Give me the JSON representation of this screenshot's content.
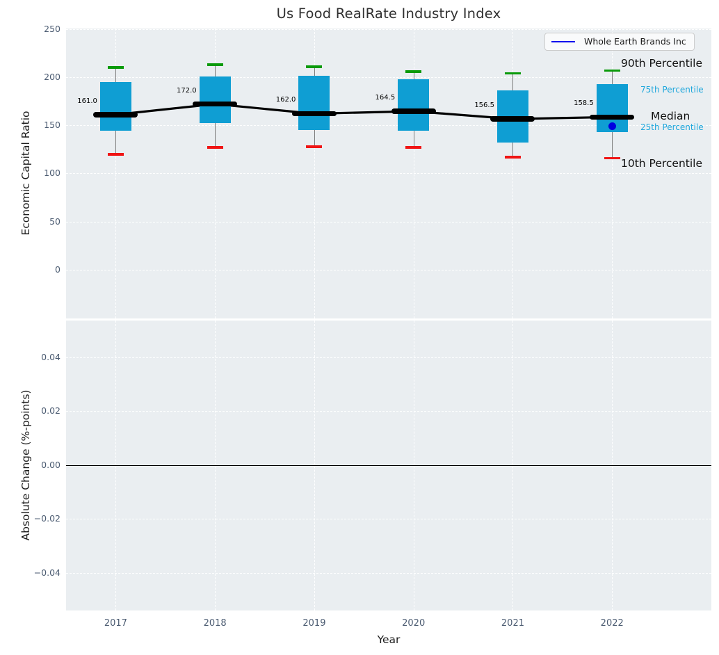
{
  "figure": {
    "title": "Us Food RealRate Industry Index",
    "xlabel": "Year"
  },
  "legend": {
    "label": "Whole Earth Brands Inc",
    "line_color": "#0000ee"
  },
  "colors": {
    "plot_background": "#eaeef1",
    "box_fill": "#0f9ed3",
    "cap_high": "#0a9a0a",
    "cap_low": "#f01414",
    "median_line": "#000000",
    "company_dot": "#0000e0",
    "cyan_annotation": "#1fa7dc",
    "tick_text": "#4b5b71"
  },
  "percentile_annotations": {
    "p90": "90th Percentile",
    "p75": "75th Percentile",
    "median": "Median",
    "p25": "25th Percentile",
    "p10": "10th Percentile"
  },
  "chart_data": [
    {
      "type": "boxplot",
      "title": "Us Food RealRate Industry Index",
      "xlabel": "Year",
      "ylabel": "Economic Capital Ratio",
      "categories": [
        "2017",
        "2018",
        "2019",
        "2020",
        "2021",
        "2022"
      ],
      "ylim": [
        -50.6,
        250.4
      ],
      "yticks": [
        {
          "v": 250,
          "t": "250"
        },
        {
          "v": 200,
          "t": "200"
        },
        {
          "v": 150,
          "t": "150"
        },
        {
          "v": 100,
          "t": "100"
        },
        {
          "v": 50,
          "t": "50"
        },
        {
          "v": 0,
          "t": "0"
        }
      ],
      "grid": true,
      "legend_position": "upper right",
      "series": [
        {
          "name": "90th Percentile",
          "role": "p90",
          "values": [
            210,
            213,
            211,
            206,
            204,
            207
          ]
        },
        {
          "name": "75th Percentile",
          "role": "p75",
          "values": [
            195,
            200.5,
            201,
            198,
            186.5,
            193
          ]
        },
        {
          "name": "Median",
          "role": "median",
          "values": [
            161.0,
            172.0,
            162.0,
            164.5,
            156.5,
            158.5
          ]
        },
        {
          "name": "25th Percentile",
          "role": "p25",
          "values": [
            144,
            152.5,
            145,
            144,
            132,
            143
          ]
        },
        {
          "name": "10th Percentile",
          "role": "p10",
          "values": [
            120,
            127,
            128,
            127,
            117,
            116
          ]
        }
      ],
      "median_labels": [
        "161.0",
        "172.0",
        "162.0",
        "164.5",
        "156.5",
        "158.5"
      ],
      "company_point": {
        "name": "Whole Earth Brands Inc",
        "category": "2022",
        "value": 149
      }
    },
    {
      "type": "line",
      "ylabel": "Absolute Change (%-points)",
      "ylim": [
        -0.054,
        0.0537
      ],
      "yticks": [
        {
          "v": 0.04,
          "t": "0.04"
        },
        {
          "v": 0.02,
          "t": "0.02"
        },
        {
          "v": 0,
          "t": "0.00"
        },
        {
          "v": -0.02,
          "t": "−0.02"
        },
        {
          "v": -0.04,
          "t": "−0.04"
        }
      ],
      "grid": true,
      "zero_line": 0,
      "series": []
    }
  ]
}
